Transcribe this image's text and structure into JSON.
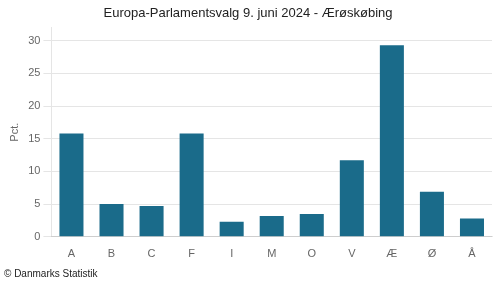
{
  "chart_data": {
    "type": "bar",
    "title": "Europa-Parlamentsvalg 9. juni 2024 - Ærøskøbing",
    "ylabel": "Pct.",
    "annotations": [
      "© Danmarks Statistik"
    ],
    "categories": [
      "A",
      "B",
      "C",
      "F",
      "I",
      "M",
      "O",
      "V",
      "Æ",
      "Ø",
      "Å"
    ],
    "values": [
      15.8,
      5.0,
      4.7,
      15.8,
      2.3,
      3.2,
      3.5,
      11.7,
      29.3,
      6.9,
      2.8
    ],
    "color": "#1a6b8a",
    "ylim": [
      0,
      32
    ],
    "yticks": [
      0,
      5,
      10,
      15,
      20,
      25,
      30
    ],
    "grid": true
  }
}
